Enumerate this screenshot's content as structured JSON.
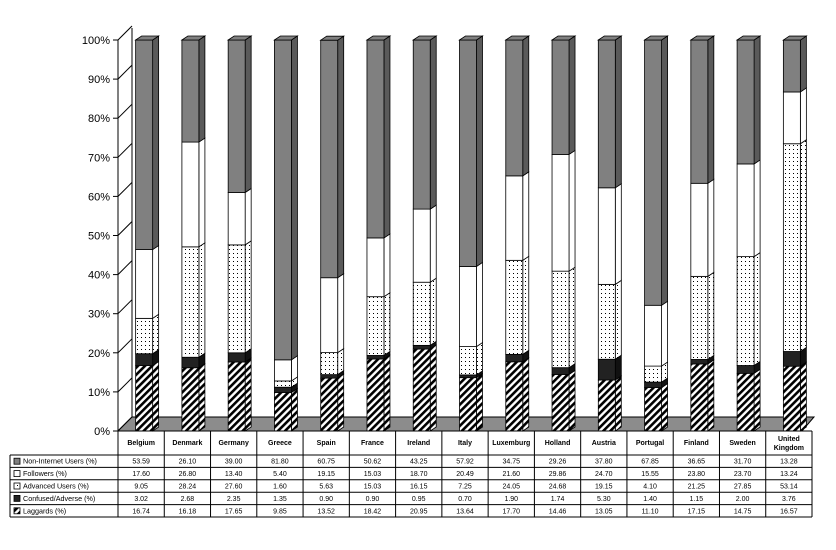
{
  "chart_data": {
    "type": "bar",
    "stacked": true,
    "percent": true,
    "three_d": true,
    "ylim": [
      0,
      100
    ],
    "y_ticks": [
      "0%",
      "10%",
      "20%",
      "30%",
      "40%",
      "50%",
      "60%",
      "70%",
      "80%",
      "90%",
      "100%"
    ],
    "grid": false,
    "legend": "data-table-bottom",
    "categories": [
      "Belgium",
      "Denmark",
      "Germany",
      "Greece",
      "Spain",
      "France",
      "Ireland",
      "Italy",
      "Luxemburg",
      "Holland",
      "Austria",
      "Portugal",
      "Finland",
      "Sweden",
      "United Kingdom"
    ],
    "category_lines": [
      [
        "Belgium"
      ],
      [
        "Denmark"
      ],
      [
        "Germany"
      ],
      [
        "Greece"
      ],
      [
        "Spain"
      ],
      [
        "France"
      ],
      [
        "Ireland"
      ],
      [
        "Italy"
      ],
      [
        "Luxemburg"
      ],
      [
        "Holland"
      ],
      [
        "Austria"
      ],
      [
        "Portugal"
      ],
      [
        "Finland"
      ],
      [
        "Sweden"
      ],
      [
        "United",
        "Kingdom"
      ]
    ],
    "table_rows": [
      {
        "name": "Non-Internet Users (%)",
        "cells": [
          "53.59",
          "26.10",
          "39.00",
          "81.80",
          "60.75",
          "50.62",
          "43.25",
          "57.92",
          "34.75",
          "29.26",
          "37.80",
          "67.85",
          "36.65",
          "31.70",
          "13.28"
        ]
      },
      {
        "name": "Followers (%)",
        "cells": [
          "17.60",
          "26.80",
          "13.40",
          "5.40",
          "19.15",
          "15.03",
          "18.70",
          "20.49",
          "21.60",
          "29.86",
          "24.70",
          "15.55",
          "23.80",
          "23.70",
          "13.24"
        ]
      },
      {
        "name": "Advanced Users (%)",
        "cells": [
          "9.05",
          "28.24",
          "27.60",
          "1.60",
          "5.63",
          "15.03",
          "16.15",
          "7.25",
          "24.05",
          "24.68",
          "19.15",
          "4.10",
          "21.25",
          "27.85",
          "53.14"
        ]
      },
      {
        "name": "Confused/Adverse (%)",
        "cells": [
          "3.02",
          "2.68",
          "2.35",
          "1.35",
          "0.90",
          "0.90",
          "0.95",
          "0.70",
          "1.90",
          "1.74",
          "5.30",
          "1.40",
          "1.15",
          "2.00",
          "3.76"
        ]
      },
      {
        "name": "Laggards (%)",
        "cells": [
          "16.74",
          "16.18",
          "17.65",
          "9.85",
          "13.52",
          "18.42",
          "20.95",
          "13.64",
          "17.70",
          "14.46",
          "13.05",
          "11.10",
          "17.15",
          "14.75",
          "16.57"
        ]
      }
    ],
    "series": [
      {
        "name": "Non-Internet Users (%)",
        "fill": "gray",
        "values": [
          53.59,
          26.1,
          39.0,
          81.8,
          60.75,
          50.62,
          43.25,
          57.92,
          34.75,
          29.26,
          37.8,
          67.85,
          36.65,
          31.7,
          13.28
        ]
      },
      {
        "name": "Followers (%)",
        "fill": "white",
        "values": [
          17.6,
          26.8,
          13.4,
          5.4,
          19.15,
          15.03,
          18.7,
          20.49,
          21.6,
          29.86,
          24.7,
          15.55,
          23.8,
          23.7,
          13.24
        ]
      },
      {
        "name": "Advanced Users (%)",
        "fill": "dots",
        "values": [
          9.05,
          28.24,
          27.6,
          1.6,
          5.63,
          15.03,
          16.15,
          7.25,
          24.05,
          24.68,
          19.15,
          4.1,
          21.25,
          27.85,
          53.14
        ]
      },
      {
        "name": "Confused/Adverse (%)",
        "fill": "dark",
        "values": [
          3.02,
          2.68,
          2.35,
          1.35,
          0.9,
          0.9,
          0.95,
          0.7,
          1.9,
          1.74,
          5.3,
          1.4,
          1.15,
          2.0,
          3.76
        ]
      },
      {
        "name": "Laggards (%)",
        "fill": "hatch",
        "values": [
          16.74,
          16.18,
          17.65,
          9.85,
          13.52,
          18.42,
          20.95,
          13.64,
          17.7,
          14.46,
          13.05,
          11.1,
          17.15,
          14.75,
          16.57
        ]
      }
    ],
    "colors": {
      "gray": "#808080",
      "gray_side": "#5a5a5a",
      "dark": "#222222",
      "white": "#ffffff",
      "floor": "#8c8c8c",
      "line": "#000000"
    }
  }
}
